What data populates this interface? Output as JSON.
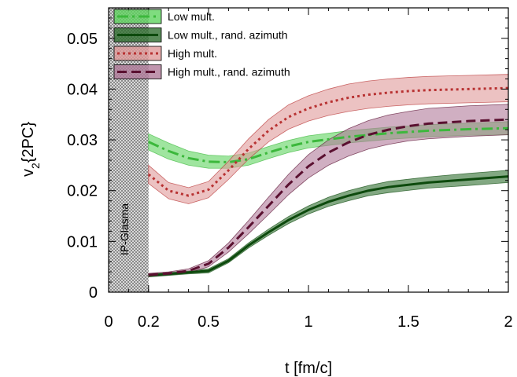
{
  "chart_data": {
    "type": "line",
    "title": "",
    "xlabel": "t [fm/c]",
    "ylabel_main": "v",
    "ylabel_sub": "2",
    "ylabel_rest": "{2PC}",
    "xlim": [
      0,
      2
    ],
    "ylim": [
      0,
      0.056
    ],
    "xticks": [
      {
        "value": 0,
        "label": "0"
      },
      {
        "value": 0.2,
        "label": "0.2"
      },
      {
        "value": 0.5,
        "label": "0.5"
      },
      {
        "value": 1,
        "label": "1"
      },
      {
        "value": 1.5,
        "label": "1.5"
      },
      {
        "value": 2,
        "label": "2"
      }
    ],
    "yticks": [
      {
        "value": 0,
        "label": "0"
      },
      {
        "value": 0.01,
        "label": "0.01"
      },
      {
        "value": 0.02,
        "label": "0.02"
      },
      {
        "value": 0.03,
        "label": "0.03"
      },
      {
        "value": 0.04,
        "label": "0.04"
      },
      {
        "value": 0.05,
        "label": "0.05"
      }
    ],
    "shaded_region": {
      "x_start": 0,
      "x_end": 0.2,
      "label": "IP-Glasma"
    },
    "legend_position": "top-left",
    "series": [
      {
        "name": "Low mult.",
        "line_color": "#3cb83c",
        "band_color": "#5fd35f",
        "dash": "dashdot",
        "x": [
          0.2,
          0.3,
          0.4,
          0.5,
          0.6,
          0.7,
          0.8,
          0.9,
          1.0,
          1.2,
          1.4,
          1.6,
          1.8,
          2.0
        ],
        "y": [
          0.0296,
          0.0278,
          0.0264,
          0.0257,
          0.0256,
          0.0262,
          0.0275,
          0.0287,
          0.0296,
          0.0306,
          0.0313,
          0.0318,
          0.0321,
          0.0323
        ],
        "err": [
          0.0016,
          0.0016,
          0.0014,
          0.0013,
          0.0012,
          0.0012,
          0.0012,
          0.0012,
          0.0012,
          0.0012,
          0.0012,
          0.0012,
          0.0012,
          0.0013
        ]
      },
      {
        "name": "Low mult., rand. azimuth",
        "line_color": "#0d4a0d",
        "band_color": "#2f6e2f",
        "dash": "solid",
        "x": [
          0.2,
          0.3,
          0.4,
          0.5,
          0.6,
          0.7,
          0.8,
          0.9,
          1.0,
          1.1,
          1.2,
          1.3,
          1.4,
          1.6,
          1.8,
          2.0
        ],
        "y": [
          0.0033,
          0.0036,
          0.0039,
          0.0042,
          0.0062,
          0.0092,
          0.0118,
          0.0142,
          0.0162,
          0.0178,
          0.019,
          0.02,
          0.0207,
          0.0216,
          0.0222,
          0.0228
        ],
        "err": [
          0.0003,
          0.0003,
          0.0003,
          0.0004,
          0.0004,
          0.0005,
          0.0006,
          0.0007,
          0.0008,
          0.0009,
          0.001,
          0.001,
          0.0011,
          0.0011,
          0.0012,
          0.0012
        ]
      },
      {
        "name": "High mult.",
        "line_color": "#b83232",
        "band_color": "#e09a9a",
        "dash": "dot",
        "x": [
          0.2,
          0.3,
          0.4,
          0.5,
          0.6,
          0.7,
          0.8,
          0.9,
          1.0,
          1.1,
          1.2,
          1.3,
          1.4,
          1.5,
          1.6,
          1.8,
          2.0
        ],
        "y": [
          0.0232,
          0.02,
          0.019,
          0.0202,
          0.024,
          0.0282,
          0.0318,
          0.0345,
          0.0362,
          0.0374,
          0.0383,
          0.0389,
          0.0393,
          0.0396,
          0.0398,
          0.04,
          0.0402
        ],
        "err": [
          0.0018,
          0.0016,
          0.0016,
          0.0016,
          0.0018,
          0.002,
          0.0022,
          0.0024,
          0.0025,
          0.0026,
          0.0027,
          0.0027,
          0.0027,
          0.0027,
          0.0027,
          0.0027,
          0.0027
        ]
      },
      {
        "name": "High mult., rand. azimuth",
        "line_color": "#5a1030",
        "band_color": "#b07a9a",
        "dash": "dash",
        "x": [
          0.2,
          0.3,
          0.4,
          0.5,
          0.6,
          0.7,
          0.8,
          0.9,
          1.0,
          1.1,
          1.2,
          1.3,
          1.4,
          1.5,
          1.6,
          1.8,
          2.0
        ],
        "y": [
          0.0034,
          0.0037,
          0.0042,
          0.0056,
          0.0088,
          0.0128,
          0.017,
          0.0212,
          0.0248,
          0.0275,
          0.0295,
          0.031,
          0.032,
          0.0327,
          0.0332,
          0.0337,
          0.034
        ],
        "err": [
          0.0003,
          0.0003,
          0.0004,
          0.0006,
          0.0009,
          0.0013,
          0.0017,
          0.002,
          0.0023,
          0.0025,
          0.0027,
          0.0028,
          0.0029,
          0.0029,
          0.003,
          0.003,
          0.003
        ]
      }
    ]
  }
}
